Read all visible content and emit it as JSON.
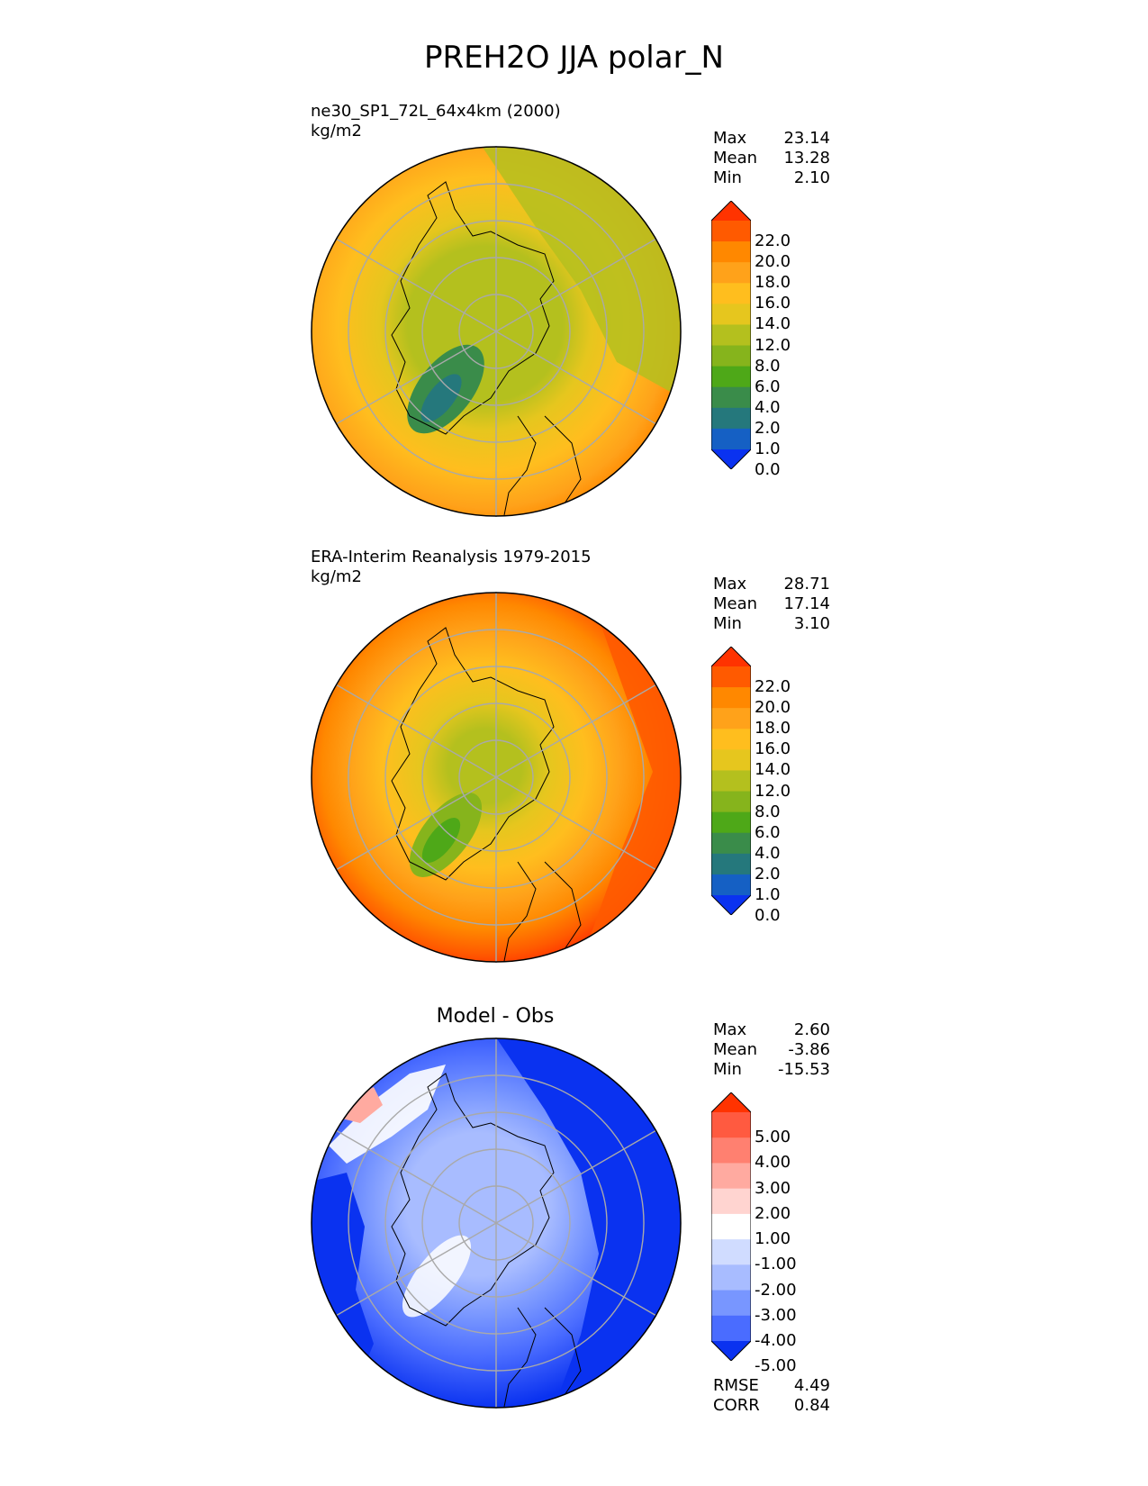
{
  "title": "PREH2O JJA polar_N",
  "panels": [
    {
      "id": "model",
      "case_name": "ne30_SP1_72L_64x4km (2000)",
      "units": "kg/m2",
      "stats": [
        {
          "label": "Max",
          "value": "23.14"
        },
        {
          "label": "Mean",
          "value": "13.28"
        },
        {
          "label": "Min",
          "value": "2.10"
        }
      ],
      "colorbar_labels": [
        "22.0",
        "20.0",
        "18.0",
        "16.0",
        "14.0",
        "12.0",
        "8.0",
        "6.0",
        "4.0",
        "2.0",
        "1.0",
        "0.0"
      ],
      "colorbar_colors": [
        "#ff3300",
        "#ff5a00",
        "#ff8800",
        "#ffa21a",
        "#ffbe1e",
        "#e6c61e",
        "#b4c01e",
        "#86b41c",
        "#4ea818",
        "#3a8c4a",
        "#25787c",
        "#1560c4",
        "#0a32f0"
      ]
    },
    {
      "id": "obs",
      "case_name": "ERA-Interim Reanalysis 1979-2015",
      "units": "kg/m2",
      "stats": [
        {
          "label": "Max",
          "value": "28.71"
        },
        {
          "label": "Mean",
          "value": "17.14"
        },
        {
          "label": "Min",
          "value": "3.10"
        }
      ],
      "colorbar_labels": [
        "22.0",
        "20.0",
        "18.0",
        "16.0",
        "14.0",
        "12.0",
        "8.0",
        "6.0",
        "4.0",
        "2.0",
        "1.0",
        "0.0"
      ],
      "colorbar_colors": [
        "#ff3300",
        "#ff5a00",
        "#ff8800",
        "#ffa21a",
        "#ffbe1e",
        "#e6c61e",
        "#b4c01e",
        "#86b41c",
        "#4ea818",
        "#3a8c4a",
        "#25787c",
        "#1560c4",
        "#0a32f0"
      ]
    },
    {
      "id": "diff",
      "plot_title": "Model - Obs",
      "stats": [
        {
          "label": "Max",
          "value": "2.60"
        },
        {
          "label": "Mean",
          "value": "-3.86"
        },
        {
          "label": "Min",
          "value": "-15.53"
        }
      ],
      "colorbar_labels": [
        "5.00",
        "4.00",
        "3.00",
        "2.00",
        "1.00",
        "-1.00",
        "-2.00",
        "-3.00",
        "-4.00",
        "-5.00"
      ],
      "colorbar_colors": [
        "#ff3300",
        "#ff5a40",
        "#ff8070",
        "#ffaaa0",
        "#ffd4d0",
        "#ffffff",
        "#d0dcff",
        "#a8bcff",
        "#7896ff",
        "#4a6cff",
        "#0a32f0"
      ],
      "metrics": [
        {
          "label": "RMSE",
          "value": "4.49"
        },
        {
          "label": "CORR",
          "value": "0.84"
        }
      ]
    }
  ]
}
